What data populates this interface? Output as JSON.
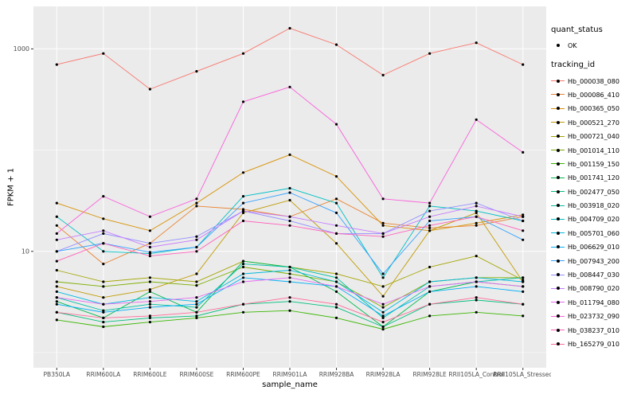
{
  "figure": {
    "panel_bg": "#EBEBEB",
    "grid_color": "#FFFFFF",
    "tick_color": "#333333",
    "tick_label_color": "#4D4D4D",
    "point_color": "#000000"
  },
  "legend": {
    "quant_status_title": "quant_status",
    "quant_status_value": "OK",
    "tracking_id_title": "tracking_id"
  },
  "chart_data": {
    "type": "line",
    "title": "",
    "xlabel": "sample_name",
    "ylabel": "FPKM + 1",
    "y_scale": "log10",
    "ylim": [
      0.7,
      2600
    ],
    "grid": true,
    "legend_position": "right",
    "yticks": [
      {
        "value": 10,
        "label": "10"
      },
      {
        "value": 1000,
        "label": "1000"
      }
    ],
    "minor_gridlines": [
      1,
      100
    ],
    "categories": [
      "PB350LA",
      "RRIM600LA",
      "RRIM600LE",
      "RRIM600SE",
      "RRIM600PE",
      "RRIM901LA",
      "RRIM928BA",
      "RRIM928LA",
      "RRIM928LE",
      "RRII105LA_Control",
      "RRII105LA_Stressed"
    ],
    "series": [
      {
        "name": "Hb_000038_080",
        "color": "#F8766D",
        "values": [
          700,
          900,
          400,
          600,
          900,
          1600,
          1100,
          550,
          900,
          1150,
          700
        ]
      },
      {
        "name": "Hb_000086_410",
        "color": "#EA8331",
        "values": [
          18,
          7.5,
          12,
          28,
          26,
          22,
          33,
          19,
          17,
          18,
          22
        ]
      },
      {
        "name": "Hb_000365_050",
        "color": "#D89000",
        "values": [
          30,
          21,
          16,
          30,
          60,
          90,
          55,
          18,
          16,
          19,
          23
        ]
      },
      {
        "name": "Hb_000521_270",
        "color": "#C09B00",
        "values": [
          4.5,
          3.5,
          4.2,
          6,
          24,
          32,
          12,
          3.6,
          16,
          24,
          5
        ]
      },
      {
        "name": "Hb_000721_040",
        "color": "#A3A500",
        "values": [
          6.5,
          5,
          5.5,
          5,
          8,
          7,
          6,
          4.5,
          7,
          9,
          5.2
        ]
      },
      {
        "name": "Hb_001014_110",
        "color": "#7CAE00",
        "values": [
          5,
          4.5,
          5,
          4.6,
          7,
          6,
          5,
          2.8,
          5,
          5.5,
          5.5
        ]
      },
      {
        "name": "Hb_001159_150",
        "color": "#39B600",
        "values": [
          2.1,
          1.8,
          2,
          2.2,
          2.5,
          2.6,
          2.2,
          1.7,
          2.3,
          2.5,
          2.3
        ]
      },
      {
        "name": "Hb_001741_120",
        "color": "#00BB4E",
        "values": [
          3.2,
          2.2,
          4,
          2.5,
          8,
          7,
          4,
          1.8,
          4,
          5,
          4.5
        ]
      },
      {
        "name": "Hb_002477_050",
        "color": "#00BF7D",
        "values": [
          2.5,
          2,
          2.2,
          2.3,
          3,
          3.2,
          2.8,
          1.8,
          3,
          3.3,
          3
        ]
      },
      {
        "name": "Hb_003918_020",
        "color": "#00C1A7",
        "values": [
          3.5,
          2.6,
          3,
          2.8,
          7.5,
          7,
          5.5,
          2.2,
          4.5,
          5,
          5.5
        ]
      },
      {
        "name": "Hb_004709_020",
        "color": "#00BFC4",
        "values": [
          22,
          10,
          9.5,
          11,
          35,
          42,
          30,
          5.5,
          28,
          25,
          20
        ]
      },
      {
        "name": "Hb_005701_060",
        "color": "#00BAE0",
        "values": [
          4,
          3,
          3.5,
          3.2,
          6,
          6.5,
          5,
          2.5,
          5,
          5.5,
          5
        ]
      },
      {
        "name": "Hb_006629_010",
        "color": "#00B0F6",
        "values": [
          3,
          2.5,
          2.8,
          3,
          5.5,
          5,
          4.5,
          2.3,
          4,
          4.5,
          4
        ]
      },
      {
        "name": "Hb_007943_200",
        "color": "#35A2FF",
        "values": [
          10,
          12,
          9.8,
          11,
          30,
          38,
          24,
          6,
          20,
          22,
          13
        ]
      },
      {
        "name": "Hb_008447_030",
        "color": "#9590FF",
        "values": [
          10,
          15,
          12,
          14,
          25,
          20,
          15,
          15,
          25,
          30,
          20
        ]
      },
      {
        "name": "Hb_008790_020",
        "color": "#C77CFF",
        "values": [
          13,
          16,
          11,
          13,
          25,
          22,
          18,
          15,
          22,
          28,
          22
        ]
      },
      {
        "name": "Hb_011794_080",
        "color": "#E76BF3",
        "values": [
          3.5,
          3,
          3.2,
          3.5,
          5,
          5.5,
          4.5,
          3,
          4.5,
          5,
          4.5
        ]
      },
      {
        "name": "Hb_023732_090",
        "color": "#FA62DB",
        "values": [
          15,
          35,
          22,
          33,
          300,
          420,
          180,
          33,
          30,
          200,
          95
        ]
      },
      {
        "name": "Hb_038237_010",
        "color": "#FF62BC",
        "values": [
          8,
          12,
          9,
          10,
          20,
          18,
          15,
          14,
          18,
          22,
          16
        ]
      },
      {
        "name": "Hb_165279_010",
        "color": "#FF6A98",
        "values": [
          2.5,
          2.2,
          2.3,
          2.5,
          3,
          3.5,
          3,
          2,
          3,
          3.5,
          3
        ]
      }
    ]
  }
}
